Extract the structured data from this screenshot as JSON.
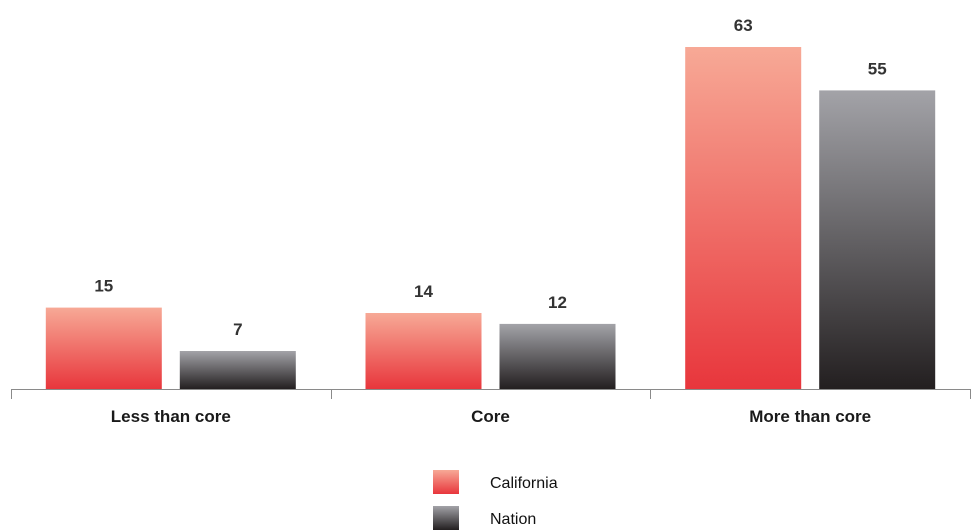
{
  "chart_data": {
    "type": "bar",
    "categories": [
      "Less than core",
      "Core",
      "More than core"
    ],
    "series": [
      {
        "name": "California",
        "values": [
          15,
          14,
          63
        ],
        "color_top": "#f7a996",
        "color_bottom": "#e8363c"
      },
      {
        "name": "Nation",
        "values": [
          7,
          12,
          55
        ],
        "color_top": "#a3a3a8",
        "color_bottom": "#231f20"
      }
    ],
    "title": "",
    "xlabel": "",
    "ylabel": "",
    "ylim": [
      0,
      63
    ],
    "grid": false,
    "legend_position": "bottom-center",
    "data_labels": true
  }
}
